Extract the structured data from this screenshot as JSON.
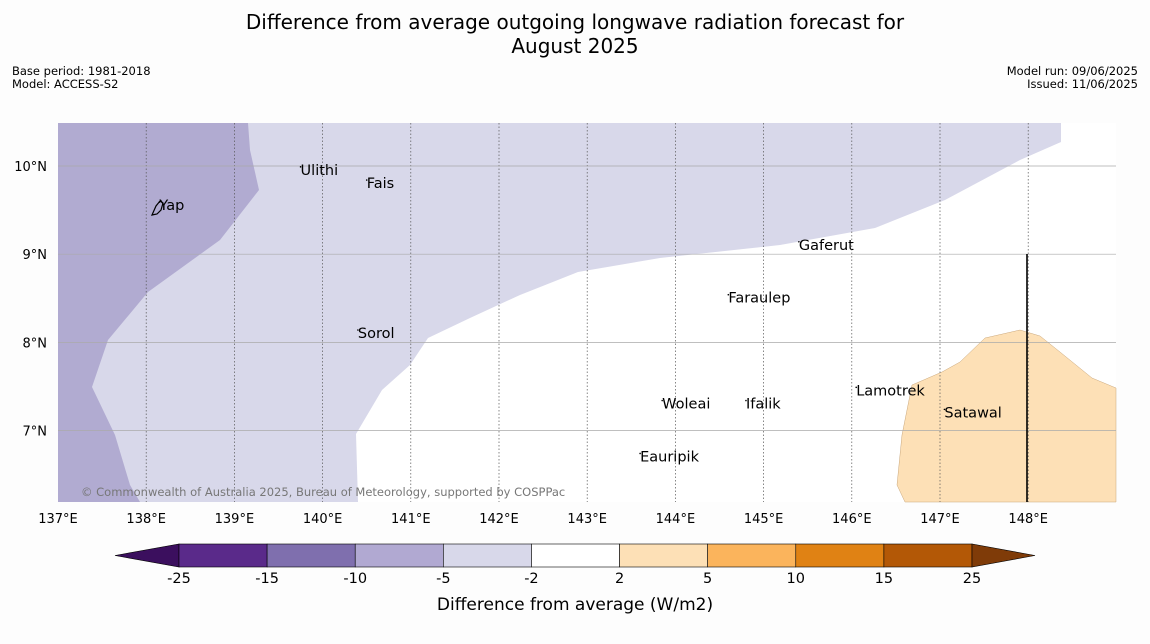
{
  "title_line1": "Difference from average outgoing longwave radiation forecast for",
  "title_line2": "August 2025",
  "meta": {
    "base_period": "Base period: 1981-2018",
    "model": "Model: ACCESS-S2",
    "model_run": "Model run: 09/06/2025",
    "issued": "Issued: 11/06/2025"
  },
  "map": {
    "lon_range": [
      137,
      149
    ],
    "lat_range": [
      6.2,
      10.5
    ],
    "lon_ticks": [
      "137°E",
      "138°E",
      "139°E",
      "140°E",
      "141°E",
      "142°E",
      "143°E",
      "144°E",
      "145°E",
      "146°E",
      "147°E",
      "148°E"
    ],
    "lat_ticks": [
      "10°N",
      "9°N",
      "8°N",
      "7°N"
    ],
    "places": [
      {
        "name": "Ulithi",
        "lon": 139.75,
        "lat": 9.9
      },
      {
        "name": "Fais",
        "lon": 140.5,
        "lat": 9.75
      },
      {
        "name": "Yap",
        "lon": 138.15,
        "lat": 9.5
      },
      {
        "name": "Gaferut",
        "lon": 145.4,
        "lat": 9.05
      },
      {
        "name": "Faraulep",
        "lon": 144.6,
        "lat": 8.45
      },
      {
        "name": "Sorol",
        "lon": 140.4,
        "lat": 8.05
      },
      {
        "name": "Lamotrek",
        "lon": 146.05,
        "lat": 7.4
      },
      {
        "name": "Woleai",
        "lon": 143.85,
        "lat": 7.25
      },
      {
        "name": "Ifalik",
        "lon": 144.8,
        "lat": 7.25
      },
      {
        "name": "Satawal",
        "lon": 147.05,
        "lat": 7.15
      },
      {
        "name": "Eauripik",
        "lon": 143.6,
        "lat": 6.65
      }
    ],
    "credit": "© Commonwealth of Australia 2025, Bureau of Meteorology, supported by COSPPac"
  },
  "colorbar": {
    "label": "Difference from average (W/m2)",
    "ticks": [
      "-25",
      "-15",
      "-10",
      "-5",
      "-2",
      "2",
      "5",
      "10",
      "15",
      "25"
    ],
    "colors": [
      "#3b0f5e",
      "#5a2a8a",
      "#7f6fae",
      "#b1a9d2",
      "#d8d8ea",
      "#ffffff",
      "#fde0b6",
      "#fbb45c",
      "#e08214",
      "#b35806",
      "#7f3b08"
    ]
  }
}
